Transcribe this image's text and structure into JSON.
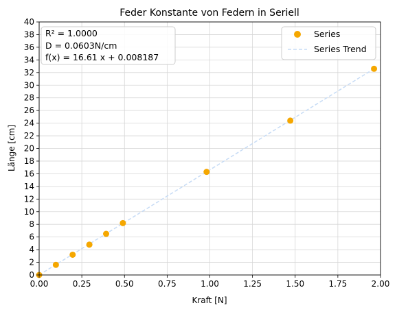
{
  "chart_data": {
    "type": "scatter",
    "title": "Feder Konstante von Federn in Seriell",
    "xlabel": "Kraft [N]",
    "ylabel": "Länge [cm]",
    "xlim": [
      0,
      2
    ],
    "ylim": [
      0,
      40
    ],
    "grid": true,
    "x_ticks": [
      0,
      0.25,
      0.5,
      0.75,
      1.0,
      1.25,
      1.5,
      1.75,
      2.0
    ],
    "x_tick_labels": [
      "0.00",
      "0.25",
      "0.50",
      "0.75",
      "1.00",
      "1.25",
      "1.50",
      "1.75",
      "2.00"
    ],
    "y_ticks": [
      0,
      2,
      4,
      6,
      8,
      10,
      12,
      14,
      16,
      18,
      20,
      22,
      24,
      26,
      28,
      30,
      32,
      34,
      36,
      38,
      40
    ],
    "y_tick_labels": [
      "0",
      "2",
      "4",
      "6",
      "8",
      "10",
      "12",
      "14",
      "16",
      "18",
      "20",
      "22",
      "24",
      "26",
      "28",
      "30",
      "32",
      "34",
      "36",
      "38",
      "40"
    ],
    "series": [
      {
        "name": "Series",
        "kind": "scatter",
        "color": "#f5a700",
        "x": [
          0,
          0.0981,
          0.1962,
          0.2943,
          0.3924,
          0.4905,
          0.981,
          1.4715,
          1.962
        ],
        "y": [
          0,
          1.6,
          3.2,
          4.8,
          6.5,
          8.2,
          16.3,
          24.4,
          32.6
        ]
      },
      {
        "name": "Series Trend",
        "kind": "line",
        "style": "dashed",
        "color": "#c6dbf5",
        "slope": 16.61,
        "intercept": 0.008187,
        "x_range": [
          0,
          1.962
        ]
      }
    ],
    "annotation": {
      "lines": [
        "R² = 1.0000",
        "D = 0.0603N/cm",
        "f(x) = 16.61 x + 0.008187"
      ],
      "position": "top-left"
    },
    "legend": {
      "position": "top-right"
    }
  }
}
